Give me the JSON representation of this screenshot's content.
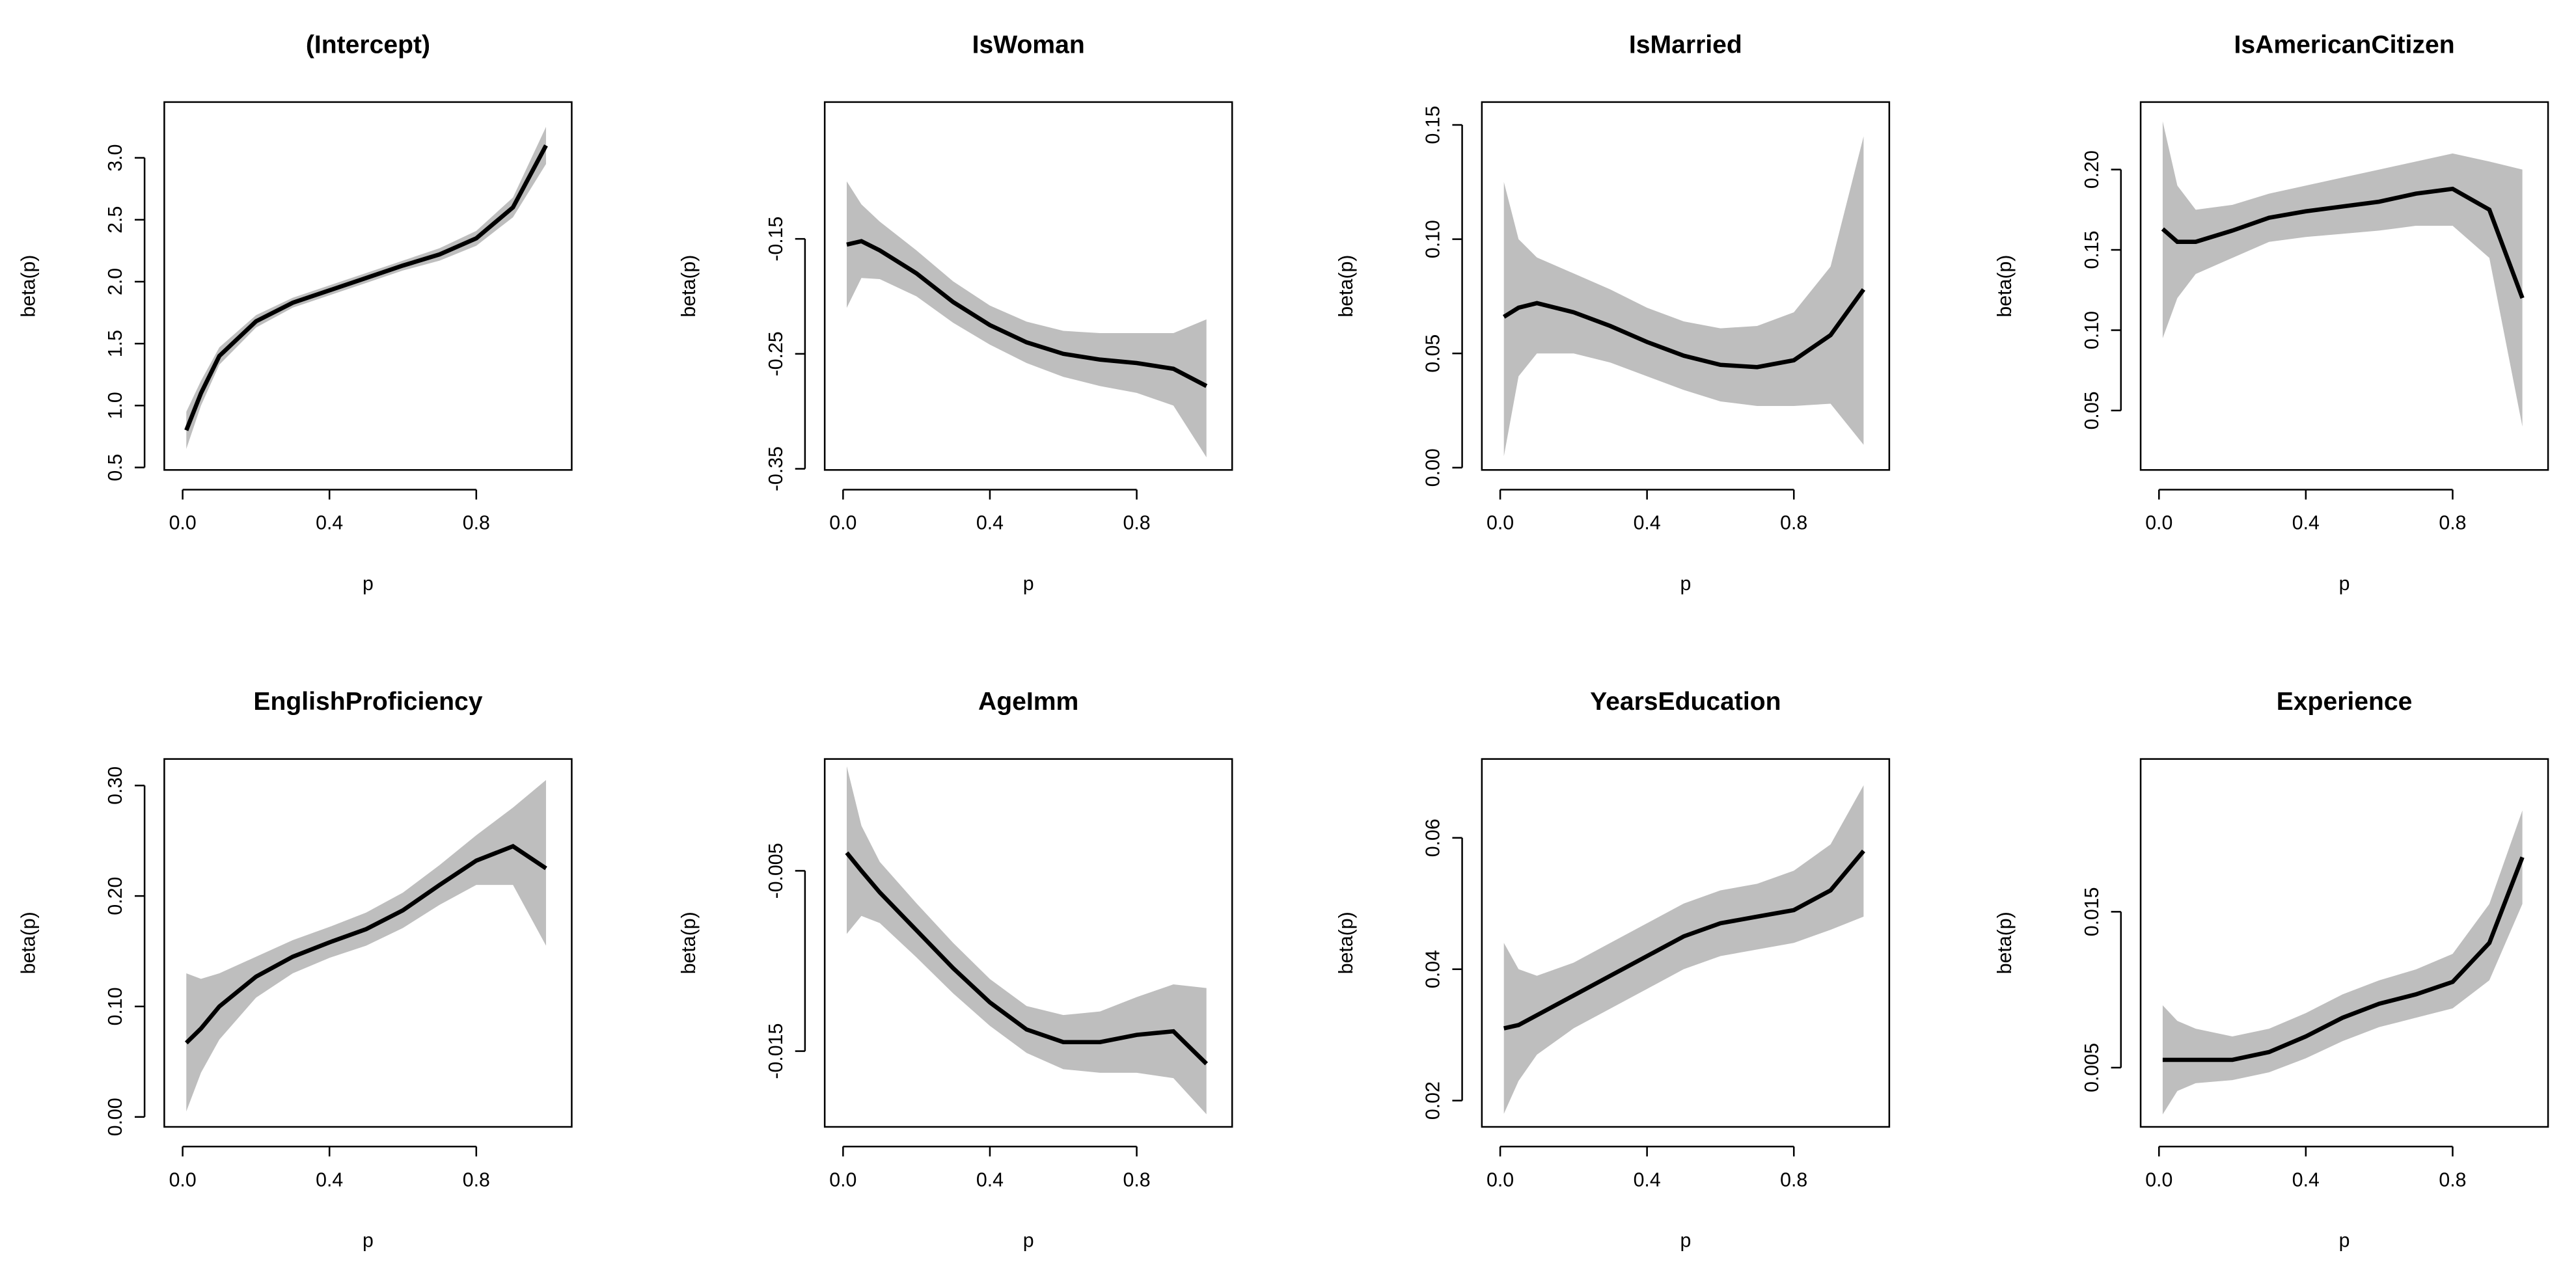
{
  "chart_data": [
    {
      "type": "line",
      "title": "(Intercept)",
      "xlabel": "p",
      "ylabel": "beta(p)",
      "x": [
        0.01,
        0.05,
        0.1,
        0.2,
        0.3,
        0.4,
        0.5,
        0.6,
        0.7,
        0.8,
        0.9,
        0.99
      ],
      "values": [
        0.8,
        1.1,
        1.4,
        1.68,
        1.83,
        1.93,
        2.03,
        2.13,
        2.22,
        2.35,
        2.6,
        3.1
      ],
      "upper": [
        0.95,
        1.2,
        1.47,
        1.73,
        1.87,
        1.97,
        2.07,
        2.17,
        2.27,
        2.41,
        2.68,
        3.25
      ],
      "lower": [
        0.65,
        1.0,
        1.33,
        1.63,
        1.79,
        1.89,
        1.99,
        2.09,
        2.17,
        2.29,
        2.52,
        2.95
      ],
      "xlim": [
        -0.05,
        1.06
      ],
      "ylim": [
        0.48,
        3.45
      ],
      "xticks": [
        {
          "value": 0,
          "label": "0.0"
        },
        0.4,
        0.8
      ],
      "yticks": [
        0.5,
        {
          "value": 1,
          "label": "1.0"
        },
        1.5,
        {
          "value": 2,
          "label": "2.0"
        },
        2.5,
        {
          "value": 3,
          "label": "3.0"
        }
      ],
      "color": "#000000",
      "band_color": "#bebebe"
    },
    {
      "type": "line",
      "title": "IsWoman",
      "xlabel": "p",
      "ylabel": "beta(p)",
      "x": [
        0.01,
        0.05,
        0.1,
        0.2,
        0.3,
        0.4,
        0.5,
        0.6,
        0.7,
        0.8,
        0.9,
        0.99
      ],
      "values": [
        -0.155,
        -0.152,
        -0.16,
        -0.18,
        -0.205,
        -0.225,
        -0.24,
        -0.25,
        -0.255,
        -0.258,
        -0.263,
        -0.278
      ],
      "upper": [
        -0.1,
        -0.12,
        -0.135,
        -0.16,
        -0.187,
        -0.208,
        -0.222,
        -0.23,
        -0.232,
        -0.232,
        -0.232,
        -0.22
      ],
      "lower": [
        -0.21,
        -0.184,
        -0.185,
        -0.2,
        -0.223,
        -0.242,
        -0.258,
        -0.27,
        -0.278,
        -0.284,
        -0.295,
        -0.34
      ],
      "xlim": [
        -0.05,
        1.06
      ],
      "ylim": [
        -0.351,
        -0.031
      ],
      "xticks": [
        {
          "value": 0,
          "label": "0.0"
        },
        0.4,
        0.8
      ],
      "yticks": [
        -0.35,
        -0.25,
        -0.15
      ],
      "color": "#000000",
      "band_color": "#bebebe"
    },
    {
      "type": "line",
      "title": "IsMarried",
      "xlabel": "p",
      "ylabel": "beta(p)",
      "x": [
        0.01,
        0.05,
        0.1,
        0.2,
        0.3,
        0.4,
        0.5,
        0.6,
        0.7,
        0.8,
        0.9,
        0.99
      ],
      "values": [
        0.066,
        0.07,
        0.072,
        0.068,
        0.062,
        0.055,
        0.049,
        0.045,
        0.044,
        0.047,
        0.058,
        0.078
      ],
      "upper": [
        0.125,
        0.1,
        0.092,
        0.085,
        0.078,
        0.07,
        0.064,
        0.061,
        0.062,
        0.068,
        0.088,
        0.145
      ],
      "lower": [
        0.005,
        0.04,
        0.05,
        0.05,
        0.046,
        0.04,
        0.034,
        0.029,
        0.027,
        0.027,
        0.028,
        0.01
      ],
      "xlim": [
        -0.05,
        1.06
      ],
      "ylim": [
        -0.001,
        0.16
      ],
      "xticks": [
        {
          "value": 0,
          "label": "0.0"
        },
        0.4,
        0.8
      ],
      "yticks": [
        {
          "value": 0,
          "label": "0.00"
        },
        0.05,
        {
          "value": 0.1,
          "label": "0.10"
        },
        0.15
      ],
      "color": "#000000",
      "band_color": "#bebebe"
    },
    {
      "type": "line",
      "title": "IsAmericanCitizen",
      "xlabel": "p",
      "ylabel": "beta(p)",
      "x": [
        0.01,
        0.05,
        0.1,
        0.2,
        0.3,
        0.4,
        0.5,
        0.6,
        0.7,
        0.8,
        0.9,
        0.99
      ],
      "values": [
        0.163,
        0.155,
        0.155,
        0.162,
        0.17,
        0.174,
        0.177,
        0.18,
        0.185,
        0.188,
        0.175,
        0.12
      ],
      "upper": [
        0.23,
        0.19,
        0.175,
        0.178,
        0.185,
        0.19,
        0.195,
        0.2,
        0.205,
        0.21,
        0.205,
        0.2
      ],
      "lower": [
        0.095,
        0.12,
        0.135,
        0.145,
        0.155,
        0.158,
        0.16,
        0.162,
        0.165,
        0.165,
        0.145,
        0.04
      ],
      "xlim": [
        -0.05,
        1.06
      ],
      "ylim": [
        0.013,
        0.242
      ],
      "xticks": [
        {
          "value": 0,
          "label": "0.0"
        },
        0.4,
        0.8
      ],
      "yticks": [
        0.05,
        {
          "value": 0.1,
          "label": "0.10"
        },
        0.15,
        {
          "value": 0.2,
          "label": "0.20"
        }
      ],
      "color": "#000000",
      "band_color": "#bebebe"
    },
    {
      "type": "line",
      "title": "EnglishProficiency",
      "xlabel": "p",
      "ylabel": "beta(p)",
      "x": [
        0.01,
        0.05,
        0.1,
        0.2,
        0.3,
        0.4,
        0.5,
        0.6,
        0.7,
        0.8,
        0.9,
        0.99
      ],
      "values": [
        0.067,
        0.08,
        0.1,
        0.127,
        0.145,
        0.158,
        0.17,
        0.187,
        0.21,
        0.232,
        0.245,
        0.225
      ],
      "upper": [
        0.13,
        0.125,
        0.13,
        0.145,
        0.16,
        0.172,
        0.185,
        0.203,
        0.228,
        0.255,
        0.28,
        0.305
      ],
      "lower": [
        0.005,
        0.04,
        0.07,
        0.108,
        0.13,
        0.144,
        0.155,
        0.171,
        0.192,
        0.21,
        0.21,
        0.155
      ],
      "xlim": [
        -0.05,
        1.06
      ],
      "ylim": [
        -0.009,
        0.324
      ],
      "xticks": [
        {
          "value": 0,
          "label": "0.0"
        },
        0.4,
        0.8
      ],
      "yticks": [
        {
          "value": 0,
          "label": "0.00"
        },
        {
          "value": 0.1,
          "label": "0.10"
        },
        {
          "value": 0.2,
          "label": "0.20"
        },
        {
          "value": 0.3,
          "label": "0.30"
        }
      ],
      "color": "#000000",
      "band_color": "#bebebe"
    },
    {
      "type": "line",
      "title": "AgeImm",
      "xlabel": "p",
      "ylabel": "beta(p)",
      "x": [
        0.01,
        0.05,
        0.1,
        0.2,
        0.3,
        0.4,
        0.5,
        0.6,
        0.7,
        0.8,
        0.9,
        0.99
      ],
      "values": [
        -0.004,
        -0.005,
        -0.0062,
        -0.0083,
        -0.0104,
        -0.0123,
        -0.0138,
        -0.0145,
        -0.0145,
        -0.0141,
        -0.0139,
        -0.0157
      ],
      "upper": [
        0.0008,
        -0.0025,
        -0.0045,
        -0.0068,
        -0.009,
        -0.011,
        -0.0125,
        -0.013,
        -0.0128,
        -0.012,
        -0.0113,
        -0.0115
      ],
      "lower": [
        -0.0085,
        -0.0075,
        -0.0079,
        -0.0098,
        -0.0118,
        -0.0136,
        -0.0151,
        -0.016,
        -0.0162,
        -0.0162,
        -0.0165,
        -0.0185
      ],
      "xlim": [
        -0.05,
        1.06
      ],
      "ylim": [
        -0.0192,
        0.0012
      ],
      "xticks": [
        {
          "value": 0,
          "label": "0.0"
        },
        0.4,
        0.8
      ],
      "yticks": [
        -0.015,
        -0.005
      ],
      "color": "#000000",
      "band_color": "#bebebe"
    },
    {
      "type": "line",
      "title": "YearsEducation",
      "xlabel": "p",
      "ylabel": "beta(p)",
      "x": [
        0.01,
        0.05,
        0.1,
        0.2,
        0.3,
        0.4,
        0.5,
        0.6,
        0.7,
        0.8,
        0.9,
        0.99
      ],
      "values": [
        0.031,
        0.0315,
        0.033,
        0.036,
        0.039,
        0.042,
        0.045,
        0.047,
        0.048,
        0.049,
        0.052,
        0.058
      ],
      "upper": [
        0.044,
        0.04,
        0.039,
        0.041,
        0.044,
        0.047,
        0.05,
        0.052,
        0.053,
        0.055,
        0.059,
        0.068
      ],
      "lower": [
        0.018,
        0.023,
        0.027,
        0.031,
        0.034,
        0.037,
        0.04,
        0.042,
        0.043,
        0.044,
        0.046,
        0.048
      ],
      "xlim": [
        -0.05,
        1.06
      ],
      "ylim": [
        0.016,
        0.072
      ],
      "xticks": [
        {
          "value": 0,
          "label": "0.0"
        },
        0.4,
        0.8
      ],
      "yticks": [
        0.02,
        0.04,
        0.06
      ],
      "color": "#000000",
      "band_color": "#bebebe"
    },
    {
      "type": "line",
      "title": "Experience",
      "xlabel": "p",
      "ylabel": "beta(p)",
      "x": [
        0.01,
        0.05,
        0.1,
        0.2,
        0.3,
        0.4,
        0.5,
        0.6,
        0.7,
        0.8,
        0.9,
        0.99
      ],
      "values": [
        0.0055,
        0.0055,
        0.0055,
        0.0055,
        0.006,
        0.007,
        0.0082,
        0.0091,
        0.0097,
        0.0105,
        0.013,
        0.0185
      ],
      "upper": [
        0.009,
        0.008,
        0.0075,
        0.007,
        0.0075,
        0.0085,
        0.0097,
        0.0106,
        0.0113,
        0.0123,
        0.0155,
        0.0215
      ],
      "lower": [
        0.002,
        0.0035,
        0.004,
        0.0042,
        0.0047,
        0.0056,
        0.0067,
        0.0076,
        0.0082,
        0.0088,
        0.0106,
        0.0155
      ],
      "xlim": [
        -0.05,
        1.06
      ],
      "ylim": [
        0.0012,
        0.0248
      ],
      "xticks": [
        {
          "value": 0,
          "label": "0.0"
        },
        0.4,
        0.8
      ],
      "yticks": [
        0.005,
        0.015
      ],
      "color": "#000000",
      "band_color": "#bebebe"
    }
  ]
}
